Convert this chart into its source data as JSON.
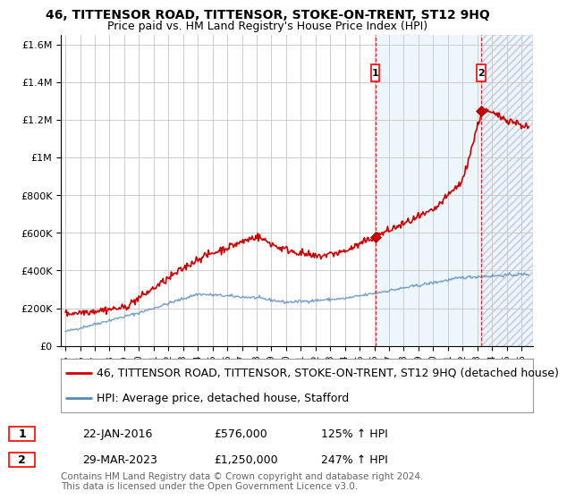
{
  "title": "46, TITTENSOR ROAD, TITTENSOR, STOKE-ON-TRENT, ST12 9HQ",
  "subtitle": "Price paid vs. HM Land Registry's House Price Index (HPI)",
  "ylabel_ticks": [
    "£0",
    "£200K",
    "£400K",
    "£600K",
    "£800K",
    "£1M",
    "£1.2M",
    "£1.4M",
    "£1.6M"
  ],
  "ytick_values": [
    0,
    200000,
    400000,
    600000,
    800000,
    1000000,
    1200000,
    1400000,
    1600000
  ],
  "ylim": [
    0,
    1650000
  ],
  "xlim_start": 1994.7,
  "xlim_end": 2026.8,
  "sale1_date_num": 2016.06,
  "sale1_price": 576000,
  "sale1_label": "1",
  "sale2_date_num": 2023.25,
  "sale2_price": 1250000,
  "sale2_label": "2",
  "legend_line1": "46, TITTENSOR ROAD, TITTENSOR, STOKE-ON-TRENT, ST12 9HQ (detached house)",
  "legend_line2": "HPI: Average price, detached house, Stafford",
  "table_rows": [
    [
      "1",
      "22-JAN-2016",
      "£576,000",
      "125% ↑ HPI"
    ],
    [
      "2",
      "29-MAR-2023",
      "£1,250,000",
      "247% ↑ HPI"
    ]
  ],
  "footnote": "Contains HM Land Registry data © Crown copyright and database right 2024.\nThis data is licensed under the Open Government Licence v3.0.",
  "red_color": "#cc0000",
  "blue_color": "#5588bb",
  "blue_fill_color": "#ccddf0",
  "grid_color": "#cccccc",
  "bg_color": "#ffffff",
  "title_fontsize": 10,
  "subtitle_fontsize": 9,
  "tick_fontsize": 8,
  "legend_fontsize": 9
}
